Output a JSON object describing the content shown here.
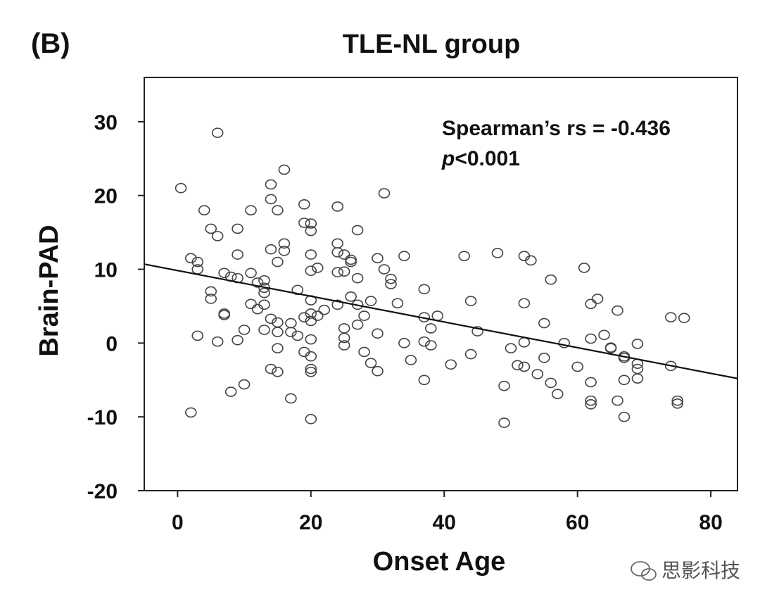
{
  "panel_label": "(B)",
  "watermark": {
    "text": "思影科技",
    "icon": "wechat-icon"
  },
  "chart_data": {
    "type": "scatter",
    "title": "TLE-NL group",
    "xlabel": "Onset Age",
    "ylabel": "Brain-PAD",
    "xlim": [
      -5,
      84
    ],
    "ylim": [
      -20,
      36
    ],
    "xticks": [
      0,
      20,
      40,
      60,
      80
    ],
    "yticks": [
      -20,
      -10,
      0,
      10,
      20,
      30
    ],
    "grid": false,
    "legend": "none",
    "annotation": {
      "stat": "Spearman’s rs = -0.436",
      "p_italic": "p",
      "p_rest": "<0.001"
    },
    "fit_line": {
      "x": [
        -5,
        84
      ],
      "y": [
        10.7,
        -4.8
      ]
    },
    "colors": {
      "marker": "#444444",
      "line": "#111111",
      "axis": "#222222",
      "text": "#111111"
    },
    "points": [
      {
        "x": 0.5,
        "y": 21
      },
      {
        "x": 2,
        "y": 11.5
      },
      {
        "x": 3,
        "y": 11
      },
      {
        "x": 3,
        "y": 10
      },
      {
        "x": 2,
        "y": -9.4
      },
      {
        "x": 3,
        "y": 1
      },
      {
        "x": 4,
        "y": 18
      },
      {
        "x": 5,
        "y": 15.5
      },
      {
        "x": 5,
        "y": 7
      },
      {
        "x": 5,
        "y": 6
      },
      {
        "x": 6,
        "y": 28.5
      },
      {
        "x": 6,
        "y": 14.5
      },
      {
        "x": 6,
        "y": 0.2
      },
      {
        "x": 7,
        "y": 9.5
      },
      {
        "x": 7,
        "y": 4
      },
      {
        "x": 7,
        "y": 3.8
      },
      {
        "x": 8,
        "y": 9
      },
      {
        "x": 8,
        "y": -6.6
      },
      {
        "x": 9,
        "y": 15.5
      },
      {
        "x": 9,
        "y": 12
      },
      {
        "x": 9,
        "y": 8.8
      },
      {
        "x": 9,
        "y": 0.4
      },
      {
        "x": 10,
        "y": 1.8
      },
      {
        "x": 10,
        "y": -5.6
      },
      {
        "x": 11,
        "y": 18
      },
      {
        "x": 11,
        "y": 9.5
      },
      {
        "x": 11,
        "y": 5.3
      },
      {
        "x": 12,
        "y": 8.2
      },
      {
        "x": 12,
        "y": 4.6
      },
      {
        "x": 13,
        "y": 8.5
      },
      {
        "x": 13,
        "y": 7.5
      },
      {
        "x": 13,
        "y": 6.8
      },
      {
        "x": 13,
        "y": 5.2
      },
      {
        "x": 13,
        "y": 1.8
      },
      {
        "x": 14,
        "y": 21.5
      },
      {
        "x": 14,
        "y": 19.5
      },
      {
        "x": 14,
        "y": 12.7
      },
      {
        "x": 14,
        "y": 3.3
      },
      {
        "x": 14,
        "y": -3.5
      },
      {
        "x": 15,
        "y": 18
      },
      {
        "x": 15,
        "y": 11
      },
      {
        "x": 15,
        "y": 2.8
      },
      {
        "x": 15,
        "y": 1.5
      },
      {
        "x": 15,
        "y": -0.7
      },
      {
        "x": 15,
        "y": -3.9
      },
      {
        "x": 16,
        "y": 23.5
      },
      {
        "x": 16,
        "y": 13.5
      },
      {
        "x": 16,
        "y": 12.5
      },
      {
        "x": 17,
        "y": 2.7
      },
      {
        "x": 17,
        "y": 1.5
      },
      {
        "x": 17,
        "y": -7.5
      },
      {
        "x": 18,
        "y": 7.2
      },
      {
        "x": 18,
        "y": 1
      },
      {
        "x": 19,
        "y": 18.8
      },
      {
        "x": 19,
        "y": 16.3
      },
      {
        "x": 19,
        "y": 3.5
      },
      {
        "x": 19,
        "y": -1.2
      },
      {
        "x": 20,
        "y": 16.2
      },
      {
        "x": 20,
        "y": 15.2
      },
      {
        "x": 20,
        "y": 12
      },
      {
        "x": 20,
        "y": 9.8
      },
      {
        "x": 20,
        "y": 5.8
      },
      {
        "x": 20,
        "y": 4
      },
      {
        "x": 20,
        "y": 3
      },
      {
        "x": 20,
        "y": 0.5
      },
      {
        "x": 20,
        "y": -1.8
      },
      {
        "x": 20,
        "y": -3.5
      },
      {
        "x": 20,
        "y": -3.9
      },
      {
        "x": 20,
        "y": -10.3
      },
      {
        "x": 21,
        "y": 10.2
      },
      {
        "x": 21,
        "y": 3.7
      },
      {
        "x": 22,
        "y": 4.5
      },
      {
        "x": 24,
        "y": 18.5
      },
      {
        "x": 24,
        "y": 13.5
      },
      {
        "x": 24,
        "y": 12.3
      },
      {
        "x": 24,
        "y": 9.6
      },
      {
        "x": 24,
        "y": 5.2
      },
      {
        "x": 25,
        "y": 12
      },
      {
        "x": 25,
        "y": 9.7
      },
      {
        "x": 25,
        "y": 2
      },
      {
        "x": 25,
        "y": 0.7
      },
      {
        "x": 25,
        "y": -0.3
      },
      {
        "x": 26,
        "y": 11.3
      },
      {
        "x": 26,
        "y": 11
      },
      {
        "x": 26,
        "y": 6.3
      },
      {
        "x": 27,
        "y": 15.3
      },
      {
        "x": 27,
        "y": 8.8
      },
      {
        "x": 27,
        "y": 5.2
      },
      {
        "x": 27,
        "y": 2.5
      },
      {
        "x": 28,
        "y": 3.7
      },
      {
        "x": 28,
        "y": -1.2
      },
      {
        "x": 29,
        "y": 5.7
      },
      {
        "x": 29,
        "y": -2.7
      },
      {
        "x": 30,
        "y": 11.5
      },
      {
        "x": 30,
        "y": 1.3
      },
      {
        "x": 30,
        "y": -3.8
      },
      {
        "x": 31,
        "y": 20.3
      },
      {
        "x": 31,
        "y": 10
      },
      {
        "x": 32,
        "y": 8.7
      },
      {
        "x": 32,
        "y": 8
      },
      {
        "x": 33,
        "y": 5.4
      },
      {
        "x": 34,
        "y": 11.8
      },
      {
        "x": 34,
        "y": 0
      },
      {
        "x": 35,
        "y": -2.3
      },
      {
        "x": 37,
        "y": 7.3
      },
      {
        "x": 37,
        "y": 3.5
      },
      {
        "x": 37,
        "y": 0.2
      },
      {
        "x": 37,
        "y": -5
      },
      {
        "x": 38,
        "y": 2
      },
      {
        "x": 38,
        "y": -0.3
      },
      {
        "x": 39,
        "y": 3.7
      },
      {
        "x": 41,
        "y": -2.9
      },
      {
        "x": 43,
        "y": 11.8
      },
      {
        "x": 44,
        "y": 5.7
      },
      {
        "x": 44,
        "y": -1.5
      },
      {
        "x": 45,
        "y": 1.6
      },
      {
        "x": 48,
        "y": 12.2
      },
      {
        "x": 49,
        "y": -5.8
      },
      {
        "x": 49,
        "y": -10.8
      },
      {
        "x": 50,
        "y": -0.7
      },
      {
        "x": 51,
        "y": -3
      },
      {
        "x": 52,
        "y": 11.8
      },
      {
        "x": 52,
        "y": 5.4
      },
      {
        "x": 52,
        "y": 0.1
      },
      {
        "x": 52,
        "y": -3.2
      },
      {
        "x": 53,
        "y": 11.2
      },
      {
        "x": 54,
        "y": -4.2
      },
      {
        "x": 55,
        "y": 2.7
      },
      {
        "x": 55,
        "y": -2
      },
      {
        "x": 56,
        "y": 8.6
      },
      {
        "x": 56,
        "y": -5.4
      },
      {
        "x": 57,
        "y": -6.9
      },
      {
        "x": 58,
        "y": 0
      },
      {
        "x": 60,
        "y": -3.2
      },
      {
        "x": 61,
        "y": 10.2
      },
      {
        "x": 62,
        "y": 5.3
      },
      {
        "x": 62,
        "y": 0.6
      },
      {
        "x": 62,
        "y": -5.3
      },
      {
        "x": 62,
        "y": -7.8
      },
      {
        "x": 62,
        "y": -8.3
      },
      {
        "x": 63,
        "y": 6
      },
      {
        "x": 64,
        "y": 1.1
      },
      {
        "x": 65,
        "y": -0.7
      },
      {
        "x": 65,
        "y": -0.6
      },
      {
        "x": 66,
        "y": 4.4
      },
      {
        "x": 66,
        "y": -7.8
      },
      {
        "x": 67,
        "y": -1.8
      },
      {
        "x": 67,
        "y": -2
      },
      {
        "x": 67,
        "y": -5
      },
      {
        "x": 67,
        "y": -10
      },
      {
        "x": 69,
        "y": -0.1
      },
      {
        "x": 69,
        "y": -2.8
      },
      {
        "x": 69,
        "y": -3.5
      },
      {
        "x": 69,
        "y": -4.8
      },
      {
        "x": 74,
        "y": 3.5
      },
      {
        "x": 74,
        "y": -3.1
      },
      {
        "x": 75,
        "y": -7.8
      },
      {
        "x": 75,
        "y": -8.2
      },
      {
        "x": 76,
        "y": 3.4
      }
    ]
  }
}
